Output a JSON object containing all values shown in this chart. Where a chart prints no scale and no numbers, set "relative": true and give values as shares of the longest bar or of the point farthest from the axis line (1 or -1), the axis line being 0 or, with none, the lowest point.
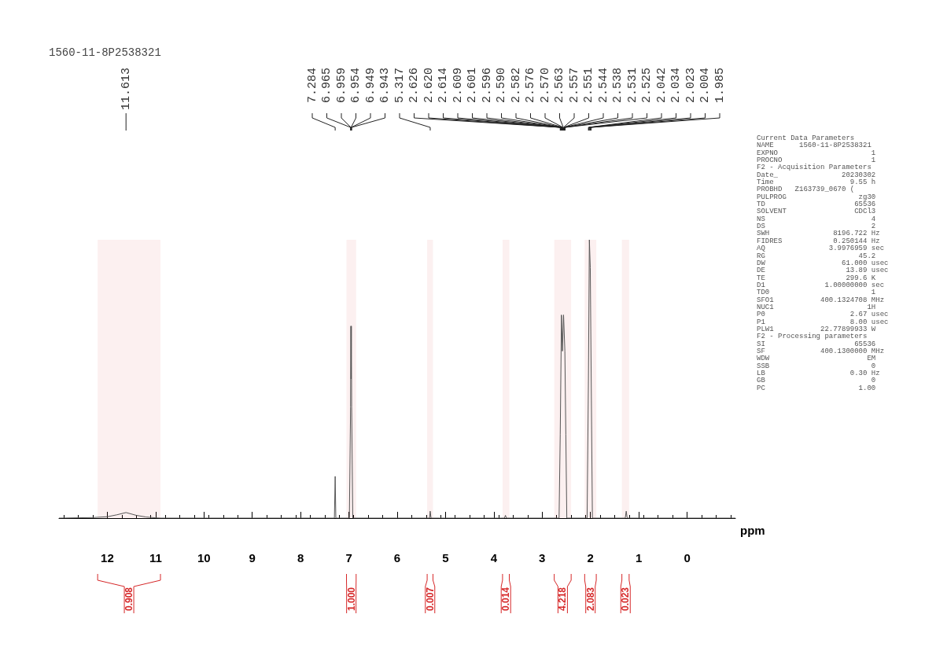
{
  "chart_data": {
    "type": "line",
    "title": "1560-11-8P2538321",
    "relative": true,
    "color": "#555555",
    "xlabel": "ppm",
    "xlim": [
      13,
      -1
    ],
    "xticks": [
      12,
      11,
      10,
      9,
      8,
      7,
      6,
      5,
      4,
      3,
      2,
      1,
      0
    ],
    "grid": false,
    "marker": "none",
    "line_style": "solid",
    "x": [
      13,
      12.3,
      12.0,
      11.8,
      11.613,
      11.4,
      11.2,
      11.0,
      10.9,
      7.3,
      7.284,
      7.27,
      6.99,
      6.965,
      6.959,
      6.954,
      6.949,
      6.943,
      6.92,
      5.33,
      5.317,
      5.3,
      3.78,
      3.76,
      3.74,
      2.65,
      2.626,
      2.6,
      2.58,
      2.557,
      2.53,
      2.51,
      2.49,
      2.07,
      2.042,
      2.023,
      2.004,
      1.985,
      1.96,
      1.28,
      1.26,
      1.24,
      -1
    ],
    "values": [
      0,
      0.002,
      0.005,
      0.012,
      0.02,
      0.01,
      0.004,
      0.001,
      0,
      0,
      0.15,
      0,
      0,
      0.4,
      0.69,
      0.5,
      0.69,
      0.4,
      0,
      0,
      0.025,
      0,
      0,
      0.01,
      0,
      0,
      0.3,
      0.73,
      0.6,
      0.73,
      0.6,
      0.3,
      0,
      0,
      0.5,
      1,
      0.9,
      0.5,
      0,
      0,
      0.025,
      0,
      0
    ],
    "bands": [
      {
        "axis": "x",
        "from": 12.2,
        "to": 10.9,
        "label": "0.908",
        "color": "#d62728"
      },
      {
        "axis": "x",
        "from": 7.05,
        "to": 6.85,
        "label": "1.000",
        "color": "#d62728"
      },
      {
        "axis": "x",
        "from": 5.38,
        "to": 5.26,
        "label": "0.007",
        "color": "#d62728"
      },
      {
        "axis": "x",
        "from": 3.82,
        "to": 3.68,
        "label": "0.014",
        "color": "#d62728"
      },
      {
        "axis": "x",
        "from": 2.75,
        "to": 2.4,
        "label": "4.218",
        "color": "#d62728"
      },
      {
        "axis": "x",
        "from": 2.12,
        "to": 1.88,
        "label": "2.083",
        "color": "#d62728"
      },
      {
        "axis": "x",
        "from": 1.35,
        "to": 1.2,
        "label": "0.023",
        "color": "#d62728"
      }
    ],
    "annotations": [
      {
        "text": "11.613",
        "x": 11.613
      },
      {
        "text": "7.284",
        "x": 7.284
      },
      {
        "text": "6.965",
        "x": 6.965
      },
      {
        "text": "6.959",
        "x": 6.959
      },
      {
        "text": "6.954",
        "x": 6.954
      },
      {
        "text": "6.949",
        "x": 6.949
      },
      {
        "text": "6.943",
        "x": 6.943
      },
      {
        "text": "5.317",
        "x": 5.317
      },
      {
        "text": "2.626",
        "x": 2.626
      },
      {
        "text": "2.620",
        "x": 2.62
      },
      {
        "text": "2.614",
        "x": 2.614
      },
      {
        "text": "2.609",
        "x": 2.609
      },
      {
        "text": "2.601",
        "x": 2.601
      },
      {
        "text": "2.596",
        "x": 2.596
      },
      {
        "text": "2.590",
        "x": 2.59
      },
      {
        "text": "2.582",
        "x": 2.582
      },
      {
        "text": "2.576",
        "x": 2.576
      },
      {
        "text": "2.570",
        "x": 2.57
      },
      {
        "text": "2.563",
        "x": 2.563
      },
      {
        "text": "2.557",
        "x": 2.557
      },
      {
        "text": "2.551",
        "x": 2.551
      },
      {
        "text": "2.544",
        "x": 2.544
      },
      {
        "text": "2.538",
        "x": 2.538
      },
      {
        "text": "2.531",
        "x": 2.531
      },
      {
        "text": "2.525",
        "x": 2.525
      },
      {
        "text": "2.042",
        "x": 2.042
      },
      {
        "text": "2.034",
        "x": 2.034
      },
      {
        "text": "2.023",
        "x": 2.023
      },
      {
        "text": "2.004",
        "x": 2.004
      },
      {
        "text": "1.985",
        "x": 1.985
      },
      "Current Data Parameters",
      "NAME      1560-11-8P2538321",
      "EXPNO                      1",
      "PROCNO                     1",
      "F2 - Acquisition Parameters",
      "Date_               20230302",
      "Time                  9.55 h",
      "PROBHD   Z163739_0670 (",
      "PULPROG                 zg30",
      "TD                     65536",
      "SOLVENT                CDCl3",
      "NS                         4",
      "DS                         2",
      "SWH               8196.722 Hz",
      "FIDRES            0.250144 Hz",
      "AQ               3.9976959 sec",
      "RG                      45.2",
      "DW                  61.000 usec",
      "DE                   13.89 usec",
      "TE                   299.6 K",
      "D1              1.00000000 sec",
      "TD0                        1",
      "SFO1           400.1324708 MHz",
      "NUC1                      1H",
      "P0                    2.67 usec",
      "P1                    8.00 usec",
      "PLW1           22.77899933 W",
      "F2 - Processing parameters",
      "SI                     65536",
      "SF             400.1300000 MHz",
      "WDW                       EM",
      "SSB                        0",
      "LB                    0.30 Hz",
      "GB                         0",
      "PC                      1.00"
    ]
  }
}
